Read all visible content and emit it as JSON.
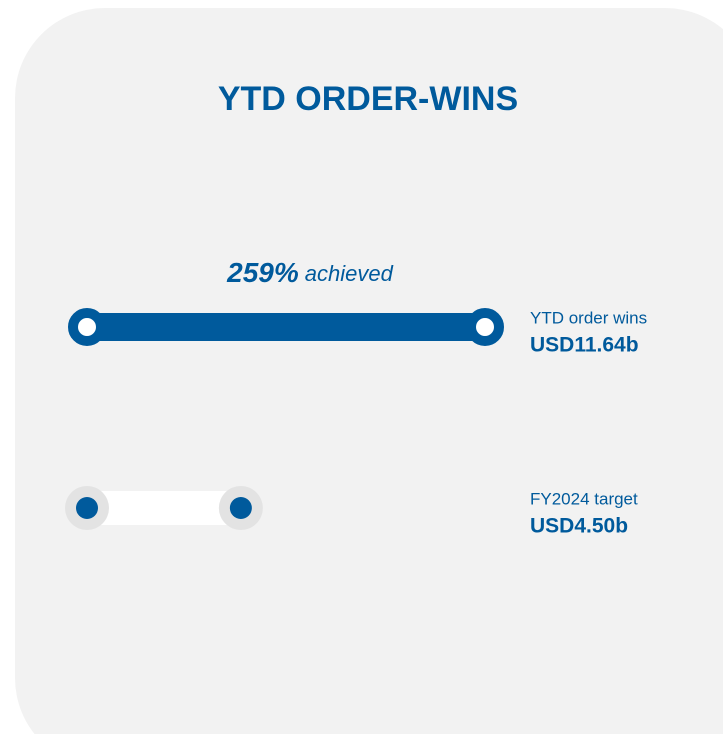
{
  "chart_data": {
    "type": "bar",
    "orientation": "horizontal",
    "title": "YTD ORDER-WINS",
    "annotation": "259%",
    "annotation_text": "achieved",
    "categories": [
      "YTD order wins",
      "FY2024 target"
    ],
    "values": [
      11.64,
      4.5
    ],
    "value_labels": [
      "USD11.64b",
      "USD4.50b"
    ],
    "colors": [
      "#005a9c",
      "#ffffff"
    ]
  }
}
